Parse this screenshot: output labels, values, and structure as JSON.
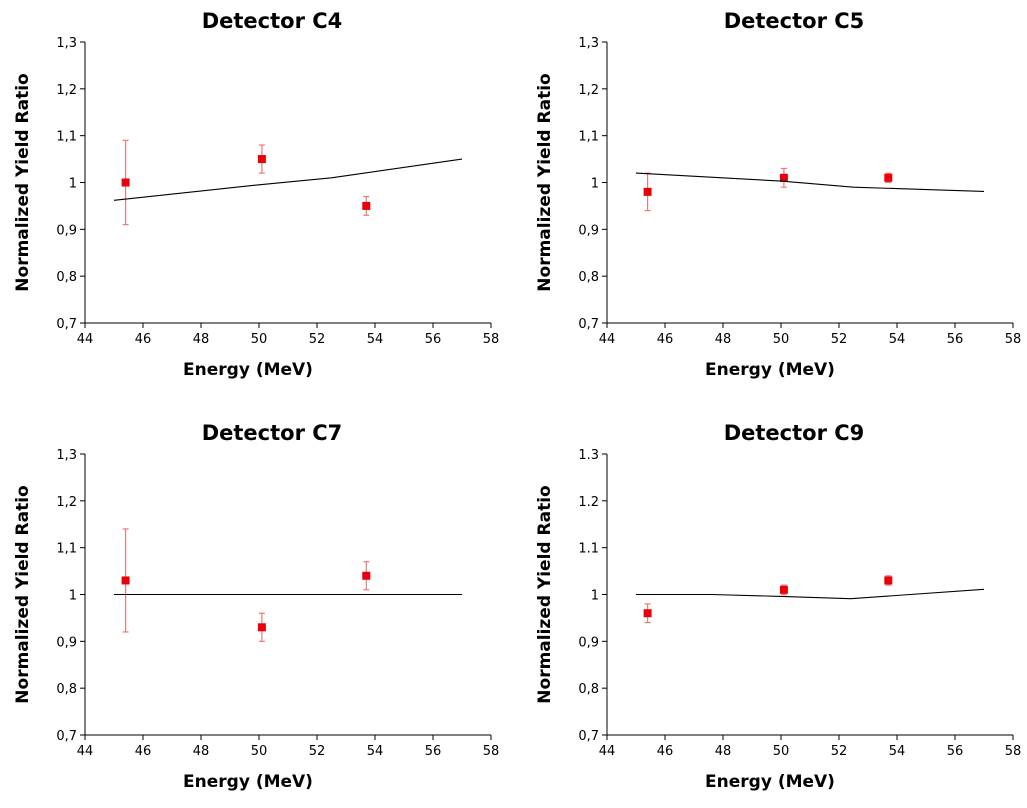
{
  "colors": {
    "marker": "#e8000b",
    "error_bar": "#e87a7a",
    "model_line": "#000000",
    "axis": "#000000"
  },
  "chart_data": [
    {
      "type": "scatter",
      "title": "Detector C4",
      "xlabel": "Energy (MeV)",
      "ylabel": "Normalized Yield Ratio",
      "xlim": [
        44,
        58
      ],
      "ylim": [
        0.7,
        1.3
      ],
      "x_ticks": [
        "44",
        "46",
        "48",
        "50",
        "52",
        "54",
        "56",
        "58"
      ],
      "y_ticks": [
        "0,7",
        "0,8",
        "0,9",
        "1",
        "1,1",
        "1,2",
        "1,3"
      ],
      "grid": false,
      "series": [
        {
          "kind": "points_with_error",
          "points": [
            {
              "x": 45.4,
              "y": 1.0,
              "err": 0.09
            },
            {
              "x": 50.1,
              "y": 1.05,
              "err": 0.03
            },
            {
              "x": 53.7,
              "y": 0.95,
              "err": 0.02
            }
          ]
        },
        {
          "kind": "line",
          "points": [
            {
              "x": 45.0,
              "y": 0.962
            },
            {
              "x": 50.0,
              "y": 0.995
            },
            {
              "x": 52.5,
              "y": 1.01
            },
            {
              "x": 57.0,
              "y": 1.05
            }
          ]
        }
      ]
    },
    {
      "type": "scatter",
      "title": "Detector C5",
      "xlabel": "Energy (MeV)",
      "ylabel": "Normalized Yield Ratio",
      "xlim": [
        44,
        58
      ],
      "ylim": [
        0.7,
        1.3
      ],
      "x_ticks": [
        "44",
        "46",
        "48",
        "50",
        "52",
        "54",
        "56",
        "58"
      ],
      "y_ticks": [
        "0,7",
        "0,8",
        "0,9",
        "1",
        "1,1",
        "1,2",
        "1,3"
      ],
      "grid": false,
      "series": [
        {
          "kind": "points_with_error",
          "points": [
            {
              "x": 45.4,
              "y": 0.98,
              "err": 0.04
            },
            {
              "x": 50.1,
              "y": 1.01,
              "err": 0.02
            },
            {
              "x": 53.7,
              "y": 1.01,
              "err": 0.01
            }
          ]
        },
        {
          "kind": "line",
          "points": [
            {
              "x": 45.0,
              "y": 1.02
            },
            {
              "x": 50.0,
              "y": 1.003
            },
            {
              "x": 52.5,
              "y": 0.99
            },
            {
              "x": 57.0,
              "y": 0.981
            }
          ]
        }
      ]
    },
    {
      "type": "scatter",
      "title": "Detector C7",
      "xlabel": "Energy (MeV)",
      "ylabel": "Normalized Yield Ratio",
      "xlim": [
        44,
        58
      ],
      "ylim": [
        0.7,
        1.3
      ],
      "x_ticks": [
        "44",
        "46",
        "48",
        "50",
        "52",
        "54",
        "56",
        "58"
      ],
      "y_ticks": [
        "0,7",
        "0,8",
        "0,9",
        "1",
        "1,1",
        "1,2",
        "1,3"
      ],
      "grid": false,
      "series": [
        {
          "kind": "points_with_error",
          "points": [
            {
              "x": 45.4,
              "y": 1.03,
              "err": 0.11
            },
            {
              "x": 50.1,
              "y": 0.93,
              "err": 0.03
            },
            {
              "x": 53.7,
              "y": 1.04,
              "err": 0.03
            }
          ]
        },
        {
          "kind": "line",
          "points": [
            {
              "x": 45.0,
              "y": 1.0
            },
            {
              "x": 57.0,
              "y": 1.0
            }
          ]
        }
      ]
    },
    {
      "type": "scatter",
      "title": "Detector C9",
      "xlabel": "Energy (MeV)",
      "ylabel": "Normalized Yield Ratio",
      "xlim": [
        44,
        58
      ],
      "ylim": [
        0.7,
        1.3
      ],
      "x_ticks": [
        "44",
        "46",
        "48",
        "50",
        "52",
        "54",
        "56",
        "58"
      ],
      "y_ticks": [
        "0,7",
        "0,8",
        "0,9",
        "1",
        "1.1",
        "1.2",
        "1.3"
      ],
      "grid": false,
      "series": [
        {
          "kind": "points_with_error",
          "points": [
            {
              "x": 45.4,
              "y": 0.96,
              "err": 0.02
            },
            {
              "x": 50.1,
              "y": 1.01,
              "err": 0.01
            },
            {
              "x": 53.7,
              "y": 1.03,
              "err": 0.01
            }
          ]
        },
        {
          "kind": "line",
          "points": [
            {
              "x": 45.0,
              "y": 1.0
            },
            {
              "x": 47.6,
              "y": 1.0
            },
            {
              "x": 50.0,
              "y": 0.996
            },
            {
              "x": 52.4,
              "y": 0.991
            },
            {
              "x": 57.0,
              "y": 1.011
            }
          ]
        }
      ]
    }
  ]
}
